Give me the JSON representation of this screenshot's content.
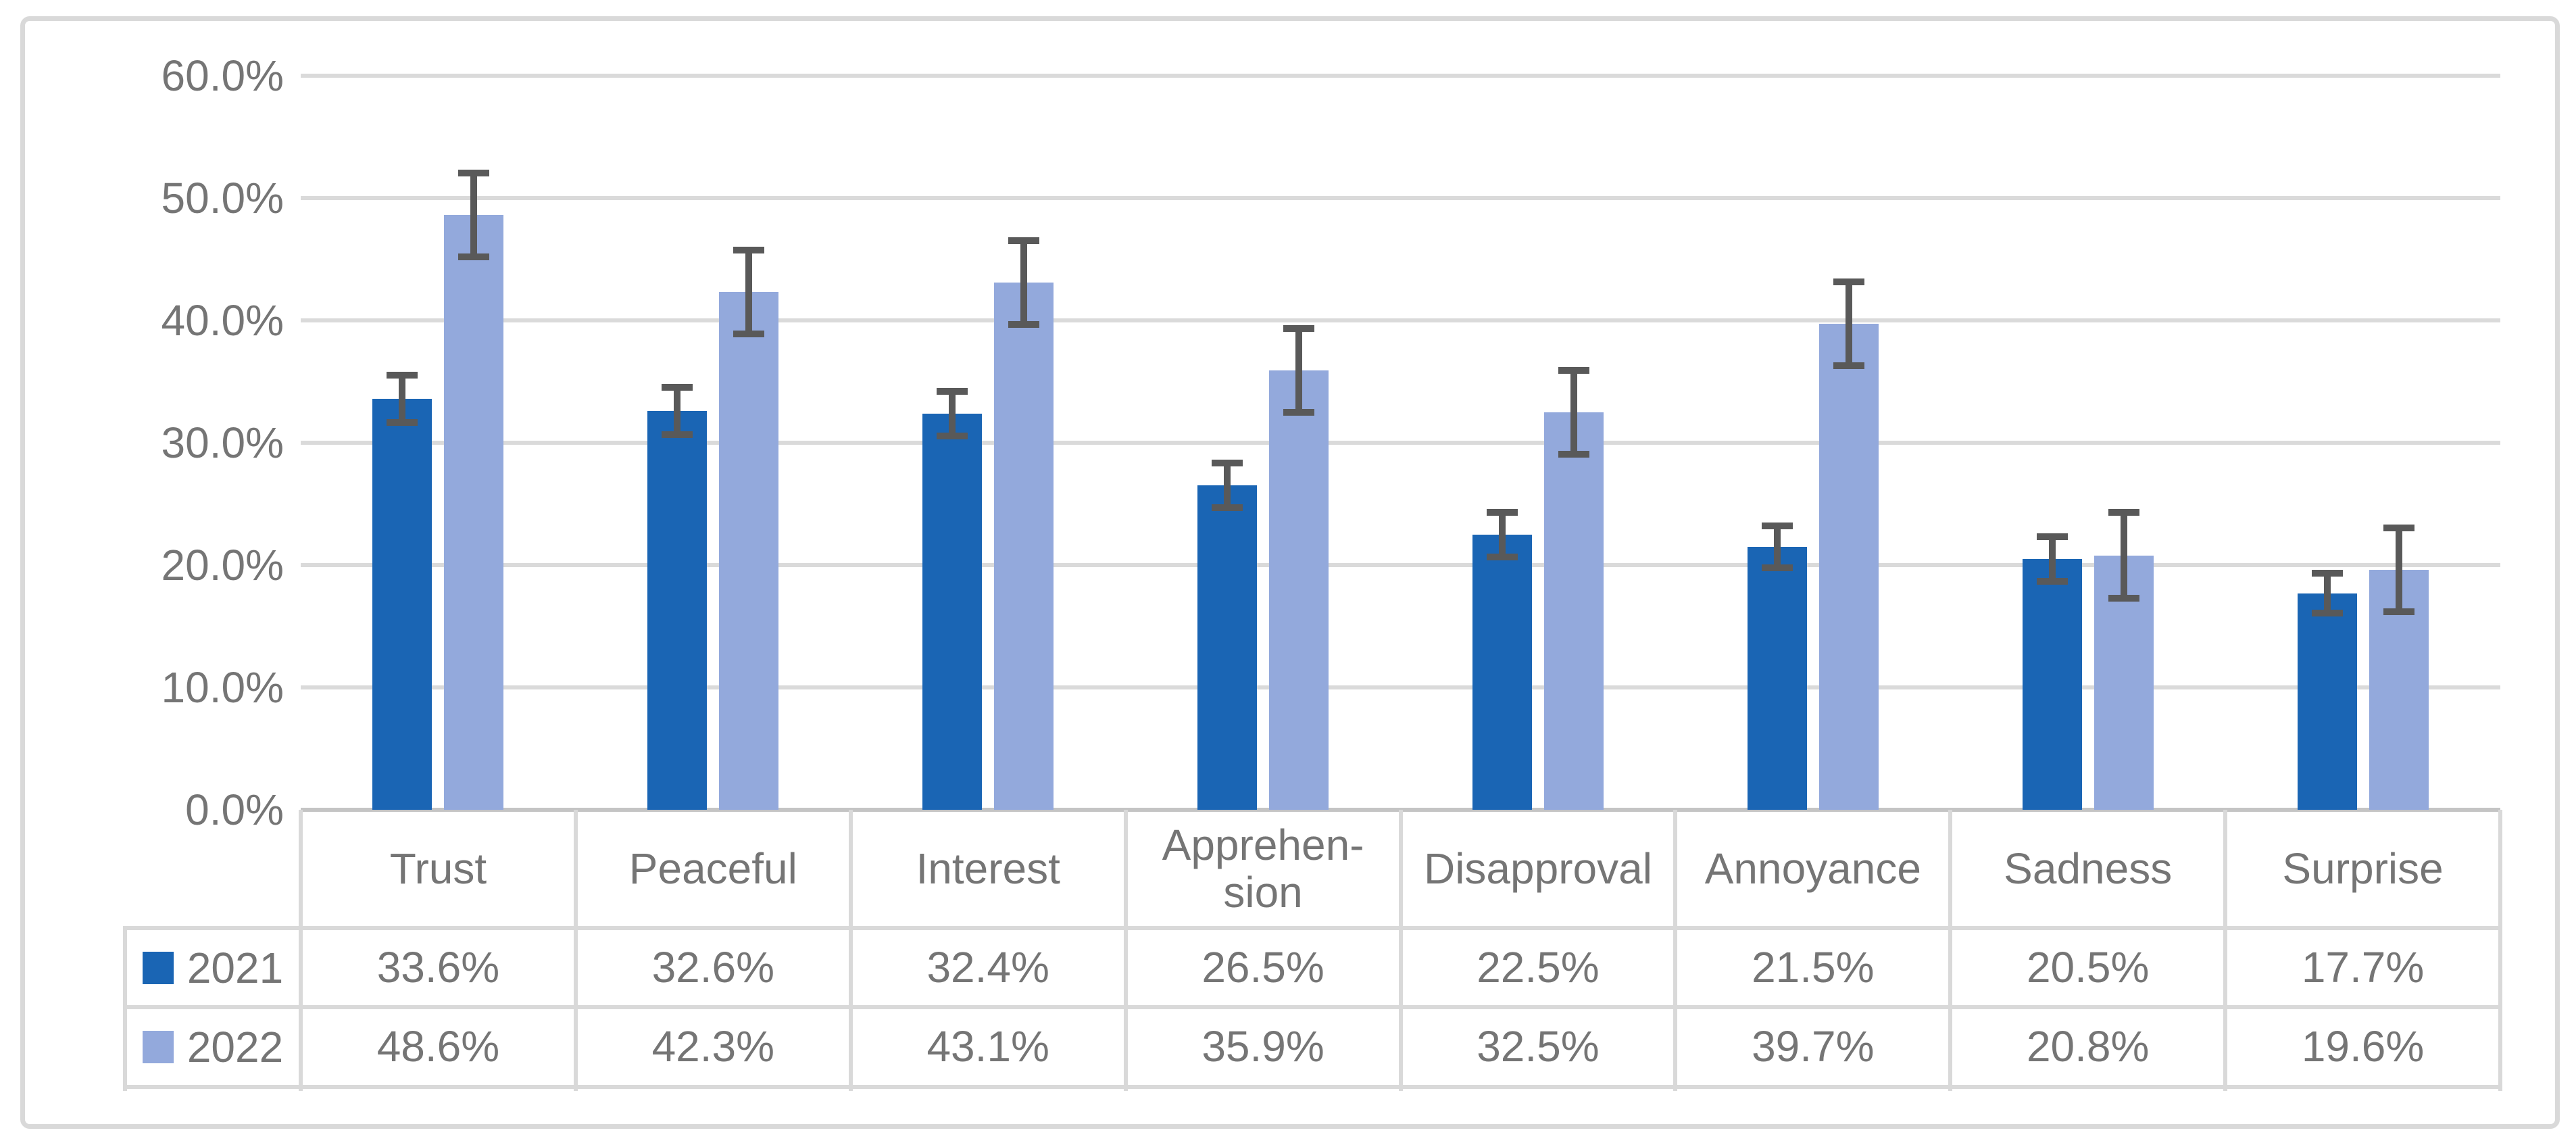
{
  "chart_data": {
    "type": "bar",
    "title": "",
    "categories": [
      "Trust",
      "Peaceful",
      "Interest",
      "Apprehension",
      "Disapproval",
      "Annoyance",
      "Sadness",
      "Surprise"
    ],
    "category_display": [
      "Trust",
      "Peaceful",
      "Interest",
      "Apprehen-\nsion",
      "Disapproval",
      "Annoyance",
      "Sadness",
      "Surprise"
    ],
    "series": [
      {
        "name": "2021",
        "color": "#1A65B4",
        "values": [
          33.6,
          32.6,
          32.4,
          26.5,
          22.5,
          21.5,
          20.5,
          17.7
        ],
        "labels": [
          "33.6%",
          "32.6%",
          "32.4%",
          "26.5%",
          "22.5%",
          "21.5%",
          "20.5%",
          "17.7%"
        ],
        "errors": [
          2.2,
          2.2,
          2.1,
          2.1,
          2.1,
          2.0,
          2.1,
          1.9
        ]
      },
      {
        "name": "2022",
        "color": "#93A9DC",
        "values": [
          48.6,
          42.3,
          43.1,
          35.9,
          32.5,
          39.7,
          20.8,
          19.6
        ],
        "labels": [
          "48.6%",
          "42.3%",
          "43.1%",
          "35.9%",
          "32.5%",
          "39.7%",
          "20.8%",
          "19.6%"
        ],
        "errors": [
          3.7,
          3.7,
          3.7,
          3.7,
          3.7,
          3.7,
          3.8,
          3.7
        ]
      }
    ],
    "y_axis": {
      "ticks": [
        "60.0%",
        "50.0%",
        "40.0%",
        "30.0%",
        "20.0%",
        "10.0%",
        "0.0%"
      ],
      "min": 0,
      "max": 60,
      "step": 10,
      "unit": "%"
    },
    "grid": true,
    "error_bars": true,
    "legend_position": "data-table-left",
    "colors": {
      "series_2021": "#1A65B4",
      "series_2022": "#93A9DC",
      "error_bar": "#595959",
      "gridline": "#DADADA",
      "axis_line": "#C4C4C4",
      "table_border": "#D9D9D9",
      "text": "#757575",
      "frame_border": "#D9D9D9",
      "background": "#FFFFFF"
    }
  }
}
